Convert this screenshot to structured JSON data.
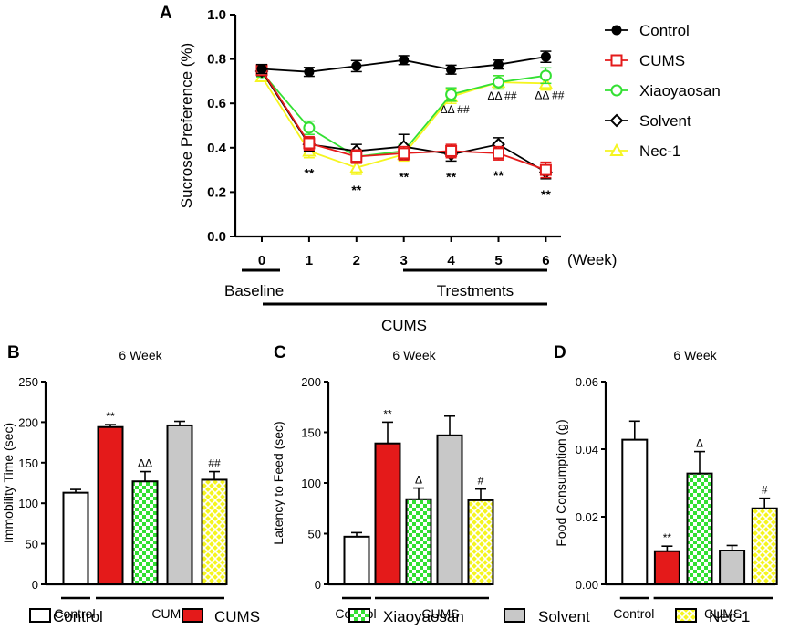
{
  "chart_data": [
    {
      "panel": "A",
      "type": "line",
      "ylabel": "Sucrose Preference (%)",
      "ylim": [
        0,
        1.0
      ],
      "yticks": [
        "0.0",
        "0.2",
        "0.4",
        "0.6",
        "0.8",
        "1.0"
      ],
      "x": [
        0,
        1,
        2,
        3,
        4,
        5,
        6
      ],
      "xticks": [
        "0",
        "1",
        "2",
        "3",
        "4",
        "5",
        "6"
      ],
      "x_unit": "(Week)",
      "baseline_label": "Baseline",
      "treatments_label": "Trestments",
      "cums_label": "CUMS",
      "series": [
        {
          "name": "Control",
          "color": "#000000",
          "marker": "circle-filled",
          "values": [
            0.755,
            0.742,
            0.768,
            0.795,
            0.752,
            0.775,
            0.81
          ],
          "errors": [
            0.02,
            0.02,
            0.025,
            0.02,
            0.02,
            0.02,
            0.025
          ]
        },
        {
          "name": "CUMS",
          "color": "#e41a1a",
          "marker": "square-open",
          "values": [
            0.75,
            0.42,
            0.36,
            0.375,
            0.385,
            0.375,
            0.3
          ],
          "errors": [
            0.02,
            0.03,
            0.03,
            0.03,
            0.03,
            0.03,
            0.035
          ]
        },
        {
          "name": "Xiaoyaosan",
          "color": "#33e033",
          "marker": "circle-open",
          "values": [
            0.74,
            0.49,
            0.36,
            0.385,
            0.64,
            0.695,
            0.725
          ],
          "errors": [
            0.02,
            0.03,
            0.03,
            0.03,
            0.03,
            0.03,
            0.035
          ]
        },
        {
          "name": "Solvent",
          "color": "#000000",
          "marker": "diamond-open",
          "values": [
            0.745,
            0.415,
            0.385,
            0.405,
            0.37,
            0.415,
            0.29
          ],
          "errors": [
            0.02,
            0.03,
            0.03,
            0.055,
            0.03,
            0.03,
            0.03
          ]
        },
        {
          "name": "Nec-1",
          "color": "#f5f520",
          "marker": "triangle-open",
          "values": [
            0.72,
            0.385,
            0.31,
            0.37,
            0.63,
            0.695,
            0.69
          ],
          "errors": [
            0.02,
            0.03,
            0.03,
            0.03,
            0.03,
            0.03,
            0.03
          ]
        }
      ],
      "annotations": [
        {
          "x": 1,
          "text": "**",
          "pos": "below"
        },
        {
          "x": 2,
          "text": "**",
          "pos": "below"
        },
        {
          "x": 3,
          "text": "**",
          "pos": "below"
        },
        {
          "x": 4,
          "text": "**",
          "pos": "below"
        },
        {
          "x": 5,
          "text": "**",
          "pos": "below"
        },
        {
          "x": 6,
          "text": "**",
          "pos": "below"
        },
        {
          "x": 4,
          "text": "ΔΔ ##",
          "pos": "above"
        },
        {
          "x": 5,
          "text": "ΔΔ ##",
          "pos": "above"
        },
        {
          "x": 6,
          "text": "ΔΔ ##",
          "pos": "above"
        }
      ]
    },
    {
      "panel": "B",
      "type": "bar",
      "title": "6 Week",
      "ylabel": "Immobility Time (sec)",
      "ylim": [
        0,
        250
      ],
      "yticks": [
        "0",
        "50",
        "100",
        "150",
        "200",
        "250"
      ],
      "categories": [
        "Control",
        "CUMS",
        "Xiaoyaosan",
        "Solvent",
        "Nec-1"
      ],
      "values": [
        113,
        194,
        127,
        196,
        129
      ],
      "errors": [
        4,
        3,
        12,
        5,
        10
      ],
      "annotations": [
        "",
        "**",
        "ΔΔ",
        "",
        "##"
      ],
      "group_labels": [
        "Control",
        "CUMS"
      ]
    },
    {
      "panel": "C",
      "type": "bar",
      "title": "6 Week",
      "ylabel": "Latency to Feed (sec)",
      "ylim": [
        0,
        200
      ],
      "yticks": [
        "0",
        "50",
        "100",
        "150",
        "200"
      ],
      "categories": [
        "Control",
        "CUMS",
        "Xiaoyaosan",
        "Solvent",
        "Nec-1"
      ],
      "values": [
        47,
        139,
        84,
        147,
        83
      ],
      "errors": [
        4,
        21,
        11,
        19,
        11
      ],
      "annotations": [
        "",
        "**",
        "Δ",
        "",
        "#"
      ],
      "group_labels": [
        "Control",
        "CUMS"
      ]
    },
    {
      "panel": "D",
      "type": "bar",
      "title": "6 Week",
      "ylabel": "Food Consumption (g)",
      "ylim": [
        0,
        0.06
      ],
      "yticks": [
        "0.00",
        "0.02",
        "0.04",
        "0.06"
      ],
      "categories": [
        "Control",
        "CUMS",
        "Xiaoyaosan",
        "Solvent",
        "Nec-1"
      ],
      "values": [
        0.0428,
        0.0098,
        0.0328,
        0.01,
        0.0225
      ],
      "errors": [
        0.0055,
        0.0015,
        0.0065,
        0.0015,
        0.003
      ],
      "annotations": [
        "",
        "**",
        "Δ",
        "",
        "#"
      ],
      "group_labels": [
        "Control",
        "CUMS"
      ]
    }
  ],
  "bar_legend": [
    {
      "label": "Control",
      "fill": "white"
    },
    {
      "label": "CUMS",
      "fill": "red"
    },
    {
      "label": "Xiaoyaosan",
      "fill": "check"
    },
    {
      "label": "Solvent",
      "fill": "gray"
    },
    {
      "label": "Nec-1",
      "fill": "lattice"
    }
  ],
  "colors": {
    "cums": "#e41a1a",
    "xiaoyaosan": "#33e033",
    "nec1": "#f5f520",
    "solvent": "#c8c8c8",
    "control": "#000000"
  }
}
